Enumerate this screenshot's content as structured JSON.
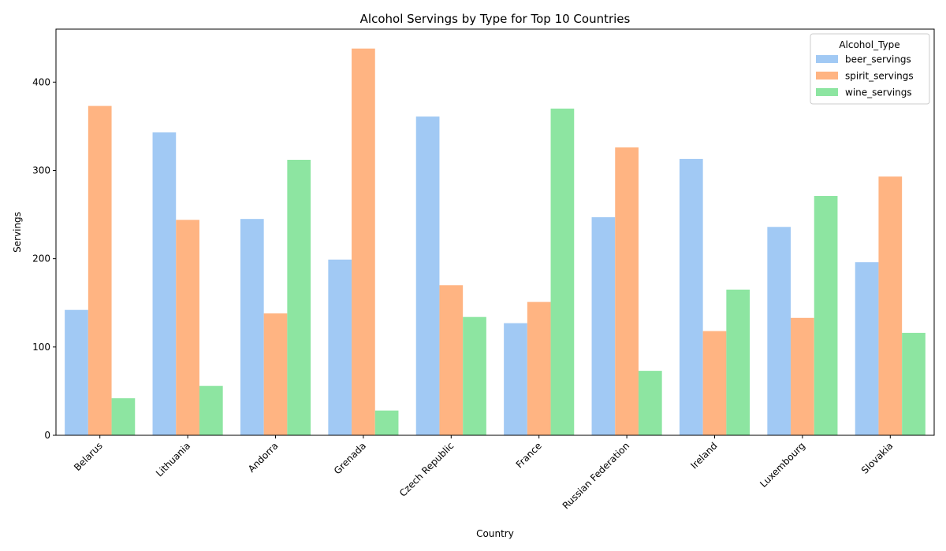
{
  "chart_data": {
    "type": "bar",
    "title": "Alcohol Servings by Type for Top 10 Countries",
    "xlabel": "Country",
    "ylabel": "Servings",
    "ylim": [
      0,
      460
    ],
    "yticks": [
      0,
      100,
      200,
      300,
      400
    ],
    "grid": false,
    "legend": {
      "title": "Alcohol_Type",
      "placement": "top-right"
    },
    "categories": [
      "Belarus",
      "Lithuania",
      "Andorra",
      "Grenada",
      "Czech Republic",
      "France",
      "Russian Federation",
      "Ireland",
      "Luxembourg",
      "Slovakia"
    ],
    "series": [
      {
        "name": "beer_servings",
        "color": "#a1c9f4",
        "values": [
          142,
          343,
          245,
          199,
          361,
          127,
          247,
          313,
          236,
          196
        ]
      },
      {
        "name": "spirit_servings",
        "color": "#ffb482",
        "values": [
          373,
          244,
          138,
          438,
          170,
          151,
          326,
          118,
          133,
          293
        ]
      },
      {
        "name": "wine_servings",
        "color": "#8de5a1",
        "values": [
          42,
          56,
          312,
          28,
          134,
          370,
          73,
          165,
          271,
          116
        ]
      }
    ]
  }
}
